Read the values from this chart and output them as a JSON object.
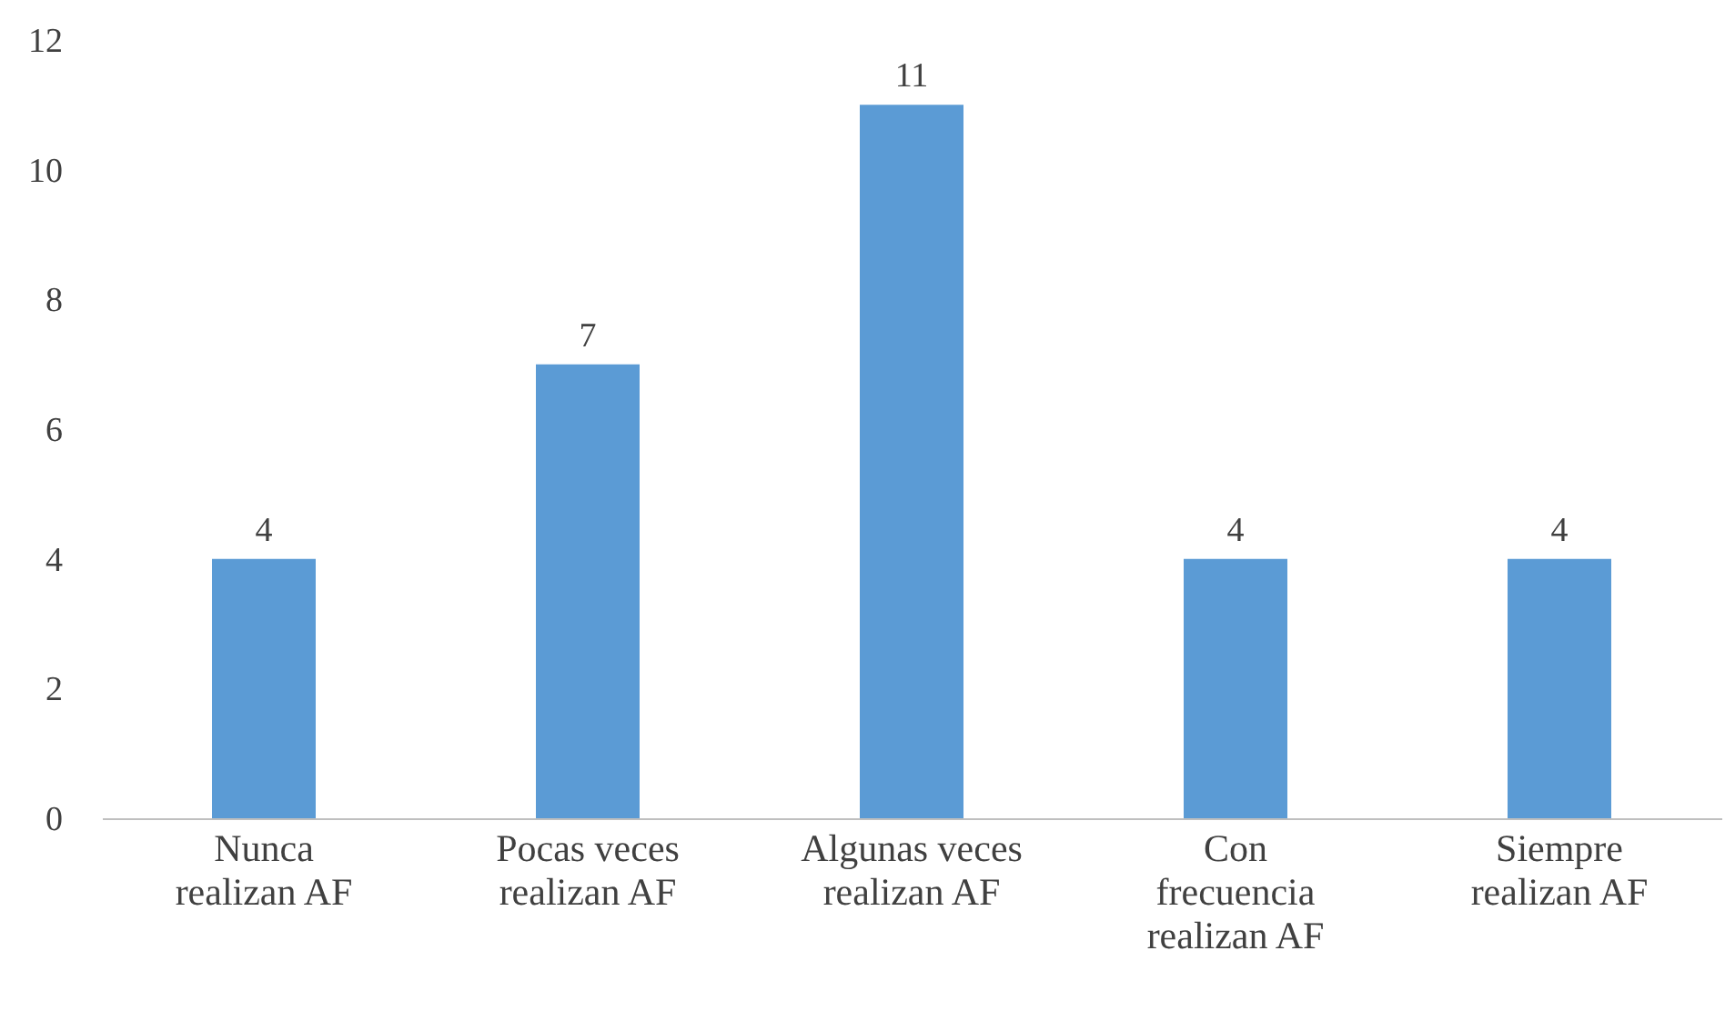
{
  "chart_data": {
    "type": "bar",
    "categories": [
      "Nunca\nrealizan AF",
      "Pocas veces\nrealizan AF",
      "Algunas veces\nrealizan AF",
      "Con\nfrecuencia\nrealizan AF",
      "Siempre\nrealizan AF"
    ],
    "values": [
      4,
      7,
      11,
      4,
      4
    ],
    "color": "#5b9bd5",
    "ylim": [
      0,
      12
    ],
    "yticks": [
      0,
      2,
      4,
      6,
      8,
      10,
      12
    ],
    "grid": false,
    "data_labels": true
  }
}
